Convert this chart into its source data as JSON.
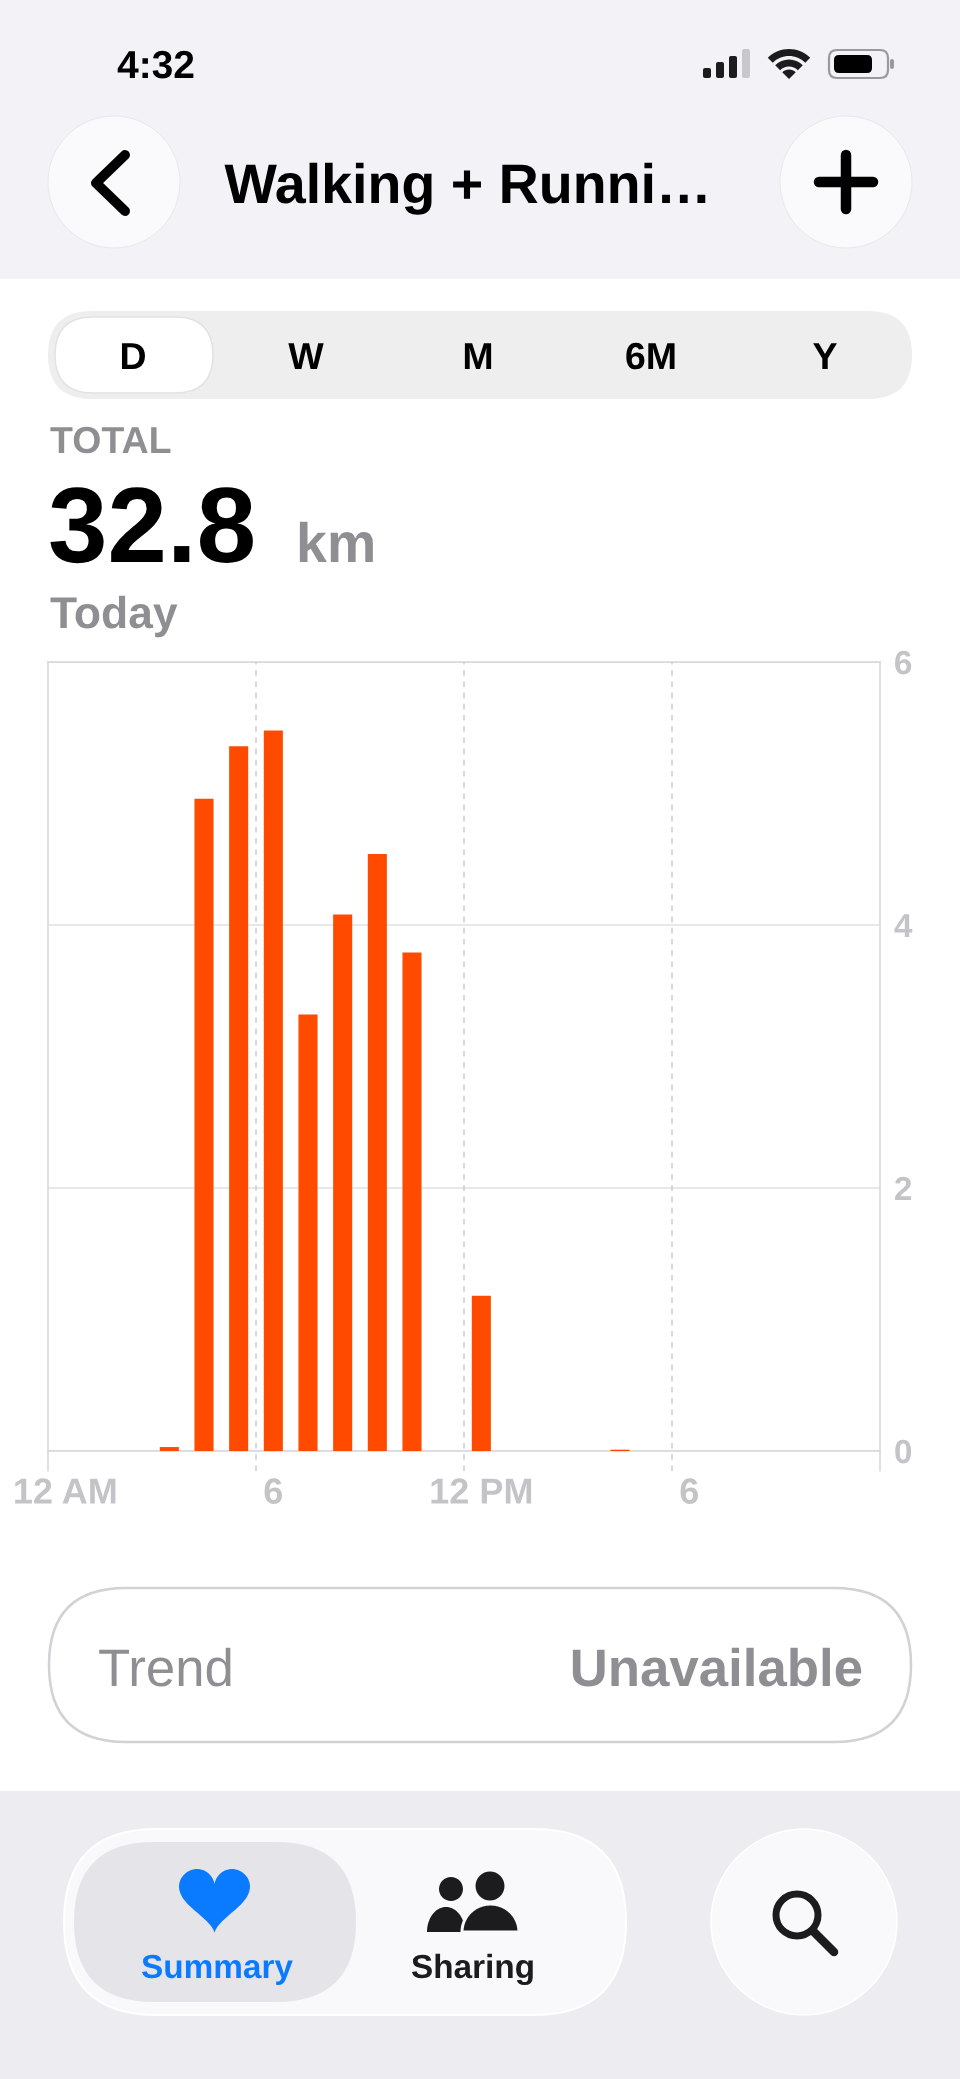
{
  "chart_data": {
    "type": "bar",
    "title": "Walking + Runni…",
    "annotations": [
      "4:32",
      "D",
      "W",
      "M",
      "6M",
      "Y",
      "TOTAL",
      "32.8",
      "km",
      "Today",
      "Trend",
      "Unavailable",
      "Summary",
      "Sharing"
    ],
    "categories": [
      "12 AM",
      null,
      null,
      null,
      null,
      null,
      "6",
      null,
      null,
      null,
      null,
      null,
      "12 PM",
      null,
      null,
      null,
      null,
      null,
      "6",
      null,
      null,
      null,
      null,
      null
    ],
    "values": [
      null,
      null,
      null,
      0.03,
      4.96,
      5.36,
      5.48,
      3.32,
      4.08,
      4.54,
      3.79,
      null,
      1.18,
      null,
      null,
      null,
      0.01,
      null,
      null,
      null,
      null,
      null,
      null,
      null
    ],
    "color": "#ff4a00",
    "ylim": [
      0,
      6
    ],
    "yticks": [
      0,
      2,
      4,
      6
    ],
    "grid": true
  }
}
